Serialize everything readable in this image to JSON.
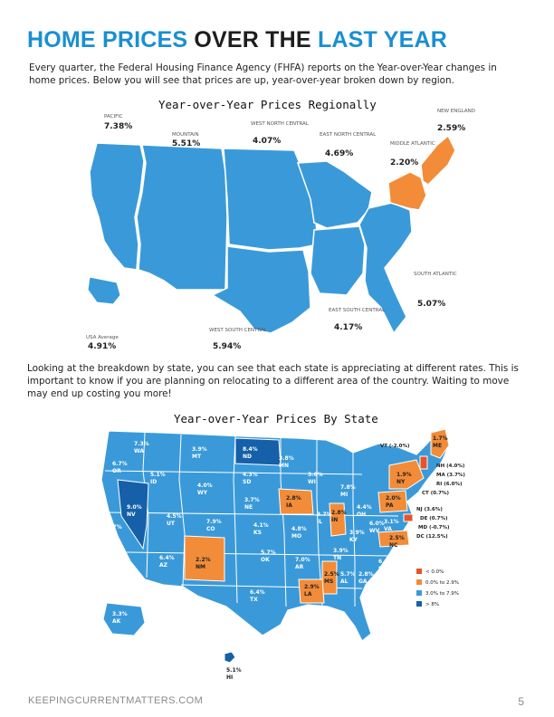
{
  "header": {
    "title_part1": "HOME PRICES",
    "title_part2": "OVER THE",
    "title_part3": "LAST YEAR",
    "intro": "Every quarter, the Federal Housing Finance Agency (FHFA) reports on the Year-over-Year changes in home prices. Below you will see that prices are up, year-over-year broken down by region."
  },
  "regional_map": {
    "title": "Year-over-Year Prices Regionally",
    "regions": [
      {
        "name": "PACIFIC",
        "value": "7.38%"
      },
      {
        "name": "MOUNTAIN",
        "value": "5.51%"
      },
      {
        "name": "WEST NORTH CENTRAL",
        "value": "4.07%"
      },
      {
        "name": "EAST NORTH CENTRAL",
        "value": "4.69%"
      },
      {
        "name": "MIDDLE ATLANTIC",
        "value": "2.20%"
      },
      {
        "name": "NEW ENGLAND",
        "value": "2.59%"
      },
      {
        "name": "SOUTH ATLANTIC",
        "value": "5.07%"
      },
      {
        "name": "EAST SOUTH CENTRAL",
        "value": "4.17%"
      },
      {
        "name": "WEST SOUTH CENTRAL",
        "value": "5.94%"
      },
      {
        "name": "USA Average",
        "value": "4.91%"
      }
    ]
  },
  "paragraph2": "Looking at the breakdown by state, you can see that each state is appreciating at different rates. This is important to know if you are planning on relocating to a different area of the country. Waiting to move may end up costing you more!",
  "state_map": {
    "title": "Year-over-Year Prices By State",
    "states": [
      {
        "abbr": "WA",
        "value": "7.3%"
      },
      {
        "abbr": "OR",
        "value": "6.7%"
      },
      {
        "abbr": "CA",
        "value": "7.7%"
      },
      {
        "abbr": "NV",
        "value": "9.0%"
      },
      {
        "abbr": "ID",
        "value": "5.1%"
      },
      {
        "abbr": "MT",
        "value": "3.9%"
      },
      {
        "abbr": "WY",
        "value": "4.0%"
      },
      {
        "abbr": "UT",
        "value": "4.5%"
      },
      {
        "abbr": "AZ",
        "value": "6.4%"
      },
      {
        "abbr": "CO",
        "value": "7.9%"
      },
      {
        "abbr": "NM",
        "value": "2.2%"
      },
      {
        "abbr": "ND",
        "value": "8.4%"
      },
      {
        "abbr": "SD",
        "value": "4.3%"
      },
      {
        "abbr": "NE",
        "value": "3.7%"
      },
      {
        "abbr": "KS",
        "value": "4.1%"
      },
      {
        "abbr": "OK",
        "value": "5.7%"
      },
      {
        "abbr": "TX",
        "value": "6.4%"
      },
      {
        "abbr": "MN",
        "value": "3.8%"
      },
      {
        "abbr": "IA",
        "value": "2.8%"
      },
      {
        "abbr": "MO",
        "value": "4.8%"
      },
      {
        "abbr": "AR",
        "value": "7.0%"
      },
      {
        "abbr": "LA",
        "value": "2.9%"
      },
      {
        "abbr": "WI",
        "value": "3.6%"
      },
      {
        "abbr": "IL",
        "value": "3.7%"
      },
      {
        "abbr": "MI",
        "value": "7.8%"
      },
      {
        "abbr": "IN",
        "value": "2.8%"
      },
      {
        "abbr": "OH",
        "value": "4.4%"
      },
      {
        "abbr": "KY",
        "value": "3.9%"
      },
      {
        "abbr": "TN",
        "value": "3.9%"
      },
      {
        "abbr": "MS",
        "value": "2.5%"
      },
      {
        "abbr": "AL",
        "value": "5.7%"
      },
      {
        "abbr": "GA",
        "value": "2.8%"
      },
      {
        "abbr": "FL",
        "value": "7.0%"
      },
      {
        "abbr": "SC",
        "value": "6.0%"
      },
      {
        "abbr": "NC",
        "value": "2.5%"
      },
      {
        "abbr": "VA",
        "value": "3.1%"
      },
      {
        "abbr": "WV",
        "value": "6.0%"
      },
      {
        "abbr": "PA",
        "value": "2.0%"
      },
      {
        "abbr": "NY",
        "value": "1.9%"
      },
      {
        "abbr": "ME",
        "value": "1.7%"
      },
      {
        "abbr": "AK",
        "value": "3.3%"
      },
      {
        "abbr": "HI",
        "value": "5.1%"
      }
    ],
    "callouts": [
      {
        "label": "VT (-2.0%)"
      },
      {
        "label": "NH (4.0%)"
      },
      {
        "label": "MA (3.7%)"
      },
      {
        "label": "RI (6.0%)"
      },
      {
        "label": "CT (0.7%)"
      },
      {
        "label": "NJ (3.6%)"
      },
      {
        "label": "DE (0.7%)"
      },
      {
        "label": "MD (-0.7%)"
      },
      {
        "label": "DC (12.5%)"
      }
    ],
    "legend": [
      {
        "label": "< 0.0%",
        "color": "#e5542a"
      },
      {
        "label": "0.0% to 2.9%",
        "color": "#f28c38"
      },
      {
        "label": "3.0% to 7.9%",
        "color": "#3a9ad9"
      },
      {
        "label": "> 8%",
        "color": "#1560a8"
      }
    ]
  },
  "colors": {
    "blue": "#3a9ad9",
    "dark_blue": "#1560a8",
    "orange": "#f28c38",
    "red": "#e5542a",
    "title_blue": "#1a8fd1"
  },
  "footer": {
    "brand": "KEEPINGCURRENTMATTERS.COM",
    "page": "5"
  }
}
